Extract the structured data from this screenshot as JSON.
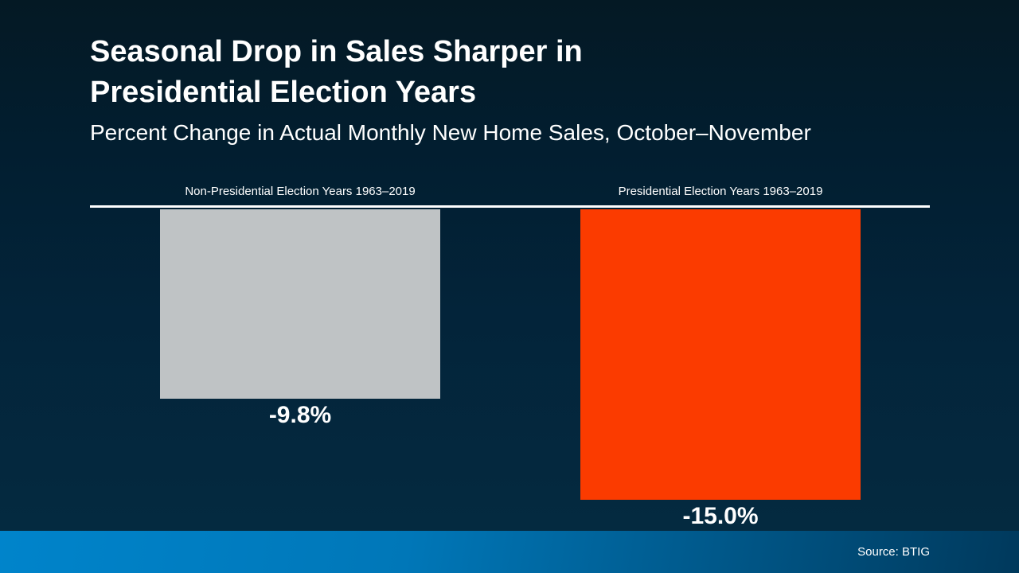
{
  "header": {
    "title_line1": "Seasonal Drop in Sales Sharper in",
    "title_line2": "Presidential Election Years",
    "subtitle": "Percent Change in Actual Monthly New Home Sales, October–November"
  },
  "footer": {
    "source": "Source: BTIG"
  },
  "colors": {
    "background_top": "#041924",
    "background_bottom": "#042a40",
    "baseline": "#ffffff",
    "bar_non_presidential": "#bfc3c5",
    "bar_presidential": "#fb3b00",
    "footer_gradient_left": "#0084cb",
    "footer_gradient_right": "#00395c",
    "text": "#ffffff"
  },
  "chart_data": {
    "type": "bar",
    "title": "Seasonal Drop in Sales Sharper in Presidential Election Years",
    "subtitle": "Percent Change in Actual Monthly New Home Sales, October–November",
    "categories": [
      "Non-Presidential Election Years 1963–2019",
      "Presidential Election Years 1963–2019"
    ],
    "values": [
      -9.8,
      -15.0
    ],
    "value_labels": [
      "-9.8%",
      "-15.0%"
    ],
    "bar_colors": [
      "#bfc3c5",
      "#fb3b00"
    ],
    "unit": "percent",
    "baseline_value": 0,
    "orientation": "vertical",
    "bars_extend": "downward-from-zero-baseline",
    "ylim": [
      -15.0,
      0
    ],
    "grid": false,
    "legend": false,
    "axis_labels": false,
    "source": "Source: BTIG"
  }
}
